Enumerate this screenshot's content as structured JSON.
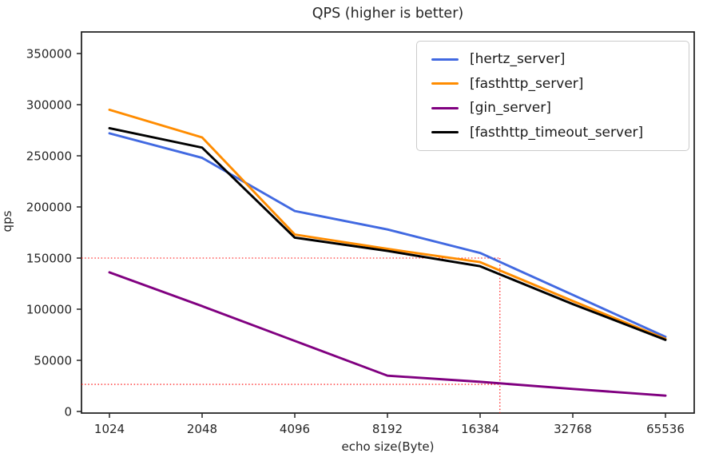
{
  "title": "QPS (higher is better)",
  "axes": {
    "x_label": "echo size(Byte)",
    "y_label": "qps",
    "x_ticks": [
      1024,
      2048,
      4096,
      8192,
      16384,
      32768,
      65536
    ],
    "y_ticks": [
      0,
      50000,
      100000,
      150000,
      200000,
      250000,
      300000,
      350000
    ]
  },
  "chart_data": {
    "type": "line",
    "title": "QPS (higher is better)",
    "xlabel": "echo size(Byte)",
    "ylabel": "qps",
    "x_scale": "log2",
    "x": [
      1024,
      2048,
      4096,
      8192,
      16384,
      32768,
      65536
    ],
    "ylim": [
      -2000,
      371000
    ],
    "grid": false,
    "legend_position": "upper right",
    "series": [
      {
        "name": "[hertz_server]",
        "color": "#4169e1",
        "values": [
          272000,
          248000,
          196000,
          178000,
          155000,
          114000,
          73000
        ]
      },
      {
        "name": "[fasthttp_server]",
        "color": "#ff8c00",
        "values": [
          295000,
          268000,
          173000,
          159000,
          146000,
          108000,
          71000
        ]
      },
      {
        "name": "[gin_server]",
        "color": "#800080",
        "values": [
          136000,
          103000,
          69000,
          35000,
          29000,
          22000,
          15500
        ]
      },
      {
        "name": "[fasthttp_timeout_server]",
        "color": "#000000",
        "values": [
          277000,
          258000,
          170000,
          157000,
          142000,
          105000,
          70000
        ]
      }
    ],
    "annotations": {
      "color": "#ff0000",
      "style": "dotted",
      "hlines": [
        150000,
        26500
      ],
      "vline_x": 19000
    }
  }
}
